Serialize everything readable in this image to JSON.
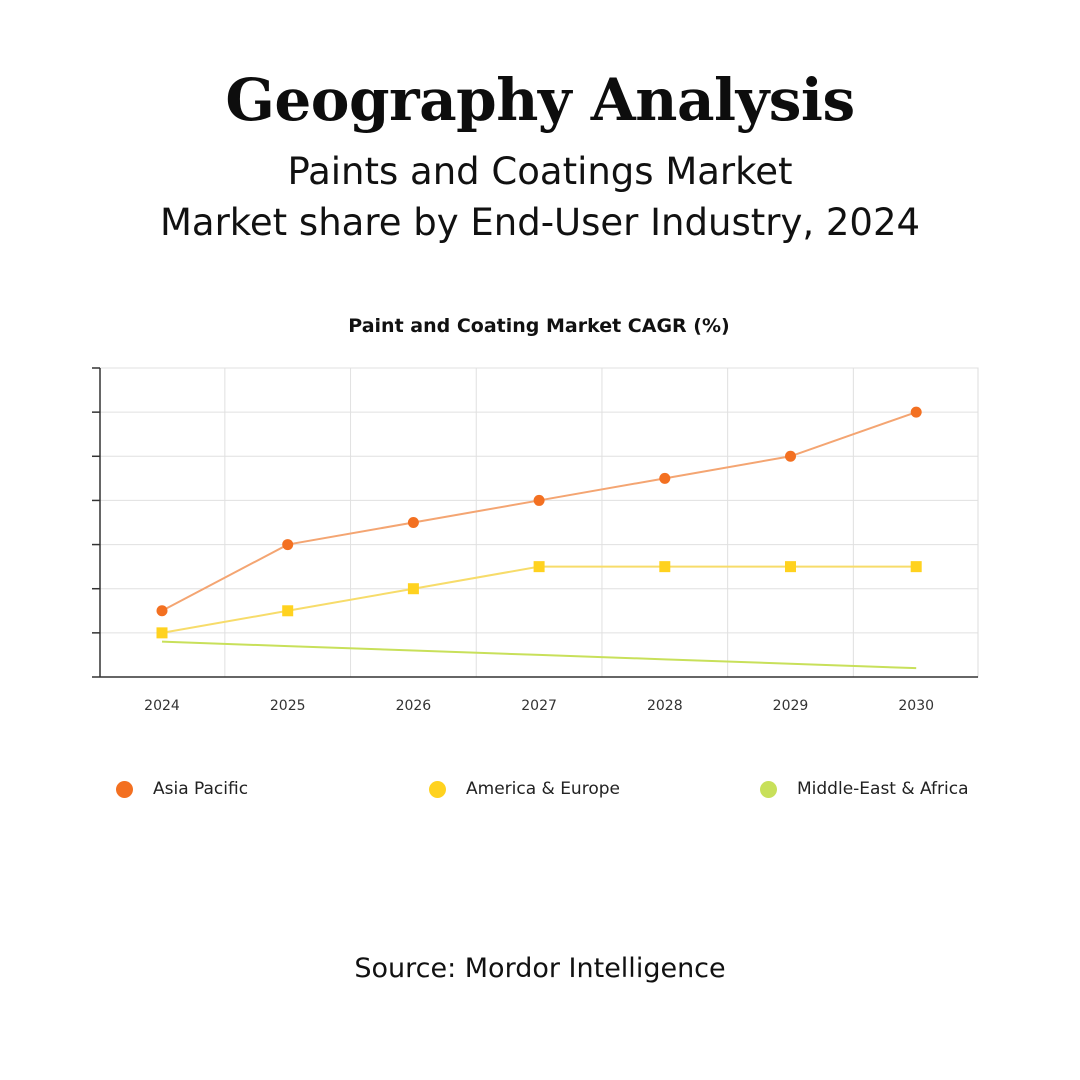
{
  "header": {
    "headline": "Geography Analysis",
    "subtitle_line1": "Paints and Coatings Market",
    "subtitle_line2": "Market share by End-User Industry, 2024"
  },
  "footer": {
    "source": "Source: Mordor Intelligence"
  },
  "chart_data": {
    "type": "line",
    "title": "Paint and Coating Market CAGR (%)",
    "xlabel": "",
    "ylabel": "",
    "categories": [
      "2024",
      "2025",
      "2026",
      "2027",
      "2028",
      "2029",
      "2030"
    ],
    "ylim": [
      0,
      7
    ],
    "y_tick_count": 8,
    "y_tick_labels_shown": false,
    "grid": true,
    "legend_position": "bottom",
    "series": [
      {
        "name": "Asia Pacific",
        "color": "#F37021",
        "line_color": "#F4A572",
        "marker": "circle",
        "values": [
          1.5,
          3.0,
          3.5,
          4.0,
          4.5,
          5.0,
          6.0
        ]
      },
      {
        "name": "America & Europe",
        "color": "#FFD21F",
        "line_color": "#F7DC6A",
        "marker": "square",
        "values": [
          1.0,
          1.5,
          2.0,
          2.5,
          2.5,
          2.5,
          2.5
        ]
      },
      {
        "name": "Middle-East & Africa",
        "color": "#C8E05A",
        "line_color": "#C8E05A",
        "marker": "none",
        "values": [
          0.8,
          0.7,
          0.6,
          0.5,
          0.4,
          0.3,
          0.2
        ]
      }
    ]
  }
}
